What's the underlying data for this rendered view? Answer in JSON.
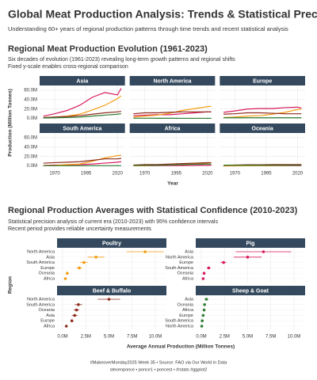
{
  "header": {
    "title": "Global Meat Production Analysis: Trends & Statistical Precision",
    "subtitle": "Understanding 60+ years of regional production patterns through time trends and recent statistical analysis"
  },
  "chart_data": [
    {
      "type": "line",
      "title": "Regional Meat Production Evolution (1961-2023)",
      "subtitle": [
        "Six decades of evolution (1961-2023) revealing long-term growth patterns and regional shifts",
        "Fixed y-scale enables cross-regional comparison"
      ],
      "y_label": "Production (Million Tonnes)",
      "x_label": "Year",
      "x": [
        1961,
        1970,
        1980,
        1990,
        2000,
        2010,
        2020,
        2023
      ],
      "xlim": [
        1958,
        2026
      ],
      "xticks": [
        1970,
        1995,
        2020
      ],
      "ylim": [
        -4,
        70
      ],
      "yticks": [
        {
          "value": 0,
          "label": "0.0M"
        },
        {
          "value": 20,
          "label": "20.0M"
        },
        {
          "value": 40,
          "label": "40.0M"
        },
        {
          "value": 60,
          "label": "60.0M"
        }
      ],
      "grid": true,
      "panels": [
        {
          "name": "Asia",
          "series": [
            {
              "color": "#d81b60",
              "values": [
                5,
                10,
                17,
                28,
                45,
                55,
                50,
                64
              ]
            },
            {
              "color": "#f39c12",
              "values": [
                2,
                3,
                5,
                9,
                18,
                28,
                42,
                48
              ]
            },
            {
              "color": "#8e2c1f",
              "values": [
                2,
                3,
                4,
                6,
                9,
                12,
                14,
                15
              ]
            },
            {
              "color": "#2e7d32",
              "values": [
                1,
                1.5,
                2,
                3,
                5,
                7,
                9,
                10
              ]
            }
          ]
        },
        {
          "name": "North America",
          "series": [
            {
              "color": "#d81b60",
              "values": [
                6,
                7,
                8,
                8,
                10,
                12,
                14,
                14
              ]
            },
            {
              "color": "#f39c12",
              "values": [
                3,
                5,
                7,
                11,
                17,
                21,
                25,
                26
              ]
            },
            {
              "color": "#8e2c1f",
              "values": [
                10,
                12,
                12,
                13,
                14,
                14,
                14,
                14
              ]
            },
            {
              "color": "#2e7d32",
              "values": [
                0.5,
                0.5,
                0.4,
                0.4,
                0.3,
                0.3,
                0.3,
                0.3
              ]
            }
          ]
        },
        {
          "name": "Europe",
          "series": [
            {
              "color": "#d81b60",
              "values": [
                13,
                16,
                20,
                21,
                21,
                23,
                24,
                22
              ]
            },
            {
              "color": "#f39c12",
              "values": [
                2,
                3,
                5,
                6,
                9,
                13,
                19,
                20
              ]
            },
            {
              "color": "#8e2c1f",
              "values": [
                9,
                10,
                12,
                12,
                11,
                10,
                10,
                10
              ]
            },
            {
              "color": "#2e7d32",
              "values": [
                1.5,
                1.5,
                1.5,
                1.5,
                1.5,
                1.5,
                1.5,
                1.5
              ]
            }
          ]
        },
        {
          "name": "South America",
          "series": [
            {
              "color": "#d81b60",
              "values": [
                1,
                2,
                2,
                3,
                4,
                6,
                8,
                9
              ]
            },
            {
              "color": "#f39c12",
              "values": [
                0.5,
                1,
                3,
                4,
                10,
                17,
                22,
                23
              ]
            },
            {
              "color": "#8e2c1f",
              "values": [
                6,
                7,
                8,
                9,
                12,
                15,
                15,
                16
              ]
            },
            {
              "color": "#2e7d32",
              "values": [
                0.5,
                0.5,
                0.5,
                0.5,
                0.5,
                0.5,
                0.5,
                0.5
              ]
            }
          ]
        },
        {
          "name": "Africa",
          "series": [
            {
              "color": "#d81b60",
              "values": [
                0.3,
                0.4,
                0.5,
                0.7,
                0.9,
                1.2,
                1.4,
                1.5
              ]
            },
            {
              "color": "#f39c12",
              "values": [
                0.5,
                0.8,
                1.5,
                2,
                3,
                5,
                6,
                7
              ]
            },
            {
              "color": "#8e2c1f",
              "values": [
                2,
                3,
                3,
                4,
                5,
                6,
                7,
                7
              ]
            },
            {
              "color": "#2e7d32",
              "values": [
                1,
                1.5,
                1.5,
                2,
                3,
                3.5,
                4,
                4
              ]
            }
          ]
        },
        {
          "name": "Oceania",
          "series": [
            {
              "color": "#d81b60",
              "values": [
                0.2,
                0.3,
                0.5,
                0.5,
                0.5,
                0.6,
                0.6,
                0.6
              ]
            },
            {
              "color": "#f39c12",
              "values": [
                0.1,
                0.2,
                0.4,
                0.6,
                0.9,
                1.1,
                1.4,
                1.5
              ]
            },
            {
              "color": "#8e2c1f",
              "values": [
                1.5,
                2,
                2.5,
                2.5,
                3,
                3,
                3,
                3
              ]
            },
            {
              "color": "#2e7d32",
              "values": [
                1.5,
                1.5,
                1.5,
                1.5,
                1.5,
                1.5,
                1.5,
                1.5
              ]
            }
          ]
        }
      ]
    },
    {
      "type": "dot",
      "title": "Regional Production Averages with Statistical Confidence (2010-2023)",
      "subtitle": [
        "Statistical precision analysis of current era (2010-2023) with 95% confidence intervals",
        "Recent period provides reliable uncertainty measurements"
      ],
      "y_label": "Region",
      "x_label": "Average Annual Production (Million Tonnes)",
      "xlim": [
        -0.6,
        11.2
      ],
      "xticks": [
        {
          "value": 0,
          "label": "0.0M"
        },
        {
          "value": 2.5,
          "label": "2.5M"
        },
        {
          "value": 5,
          "label": "5.0M"
        },
        {
          "value": 7.5,
          "label": "7.5M"
        },
        {
          "value": 10,
          "label": "10.0M"
        }
      ],
      "grid": true,
      "panels": [
        {
          "name": "Poultry",
          "color": "#f39c12",
          "categories": [
            "North America",
            "Asia",
            "South America",
            "Europe",
            "Oceania",
            "Africa"
          ],
          "values": [
            8.9,
            3.6,
            2.3,
            1.8,
            0.5,
            0.3
          ],
          "errors": [
            2,
            0.9,
            0.4,
            0.3,
            0.1,
            0.1
          ]
        },
        {
          "name": "Pig",
          "color": "#d81b60",
          "categories": [
            "Asia",
            "North America",
            "Europe",
            "South America",
            "Oceania",
            "Africa"
          ],
          "values": [
            6.7,
            5,
            2.4,
            0.8,
            0.3,
            0.2
          ],
          "errors": [
            3,
            1.5,
            0.3,
            0.2,
            0.1,
            0.05
          ]
        },
        {
          "name": "Beef & Buffalo",
          "color": "#8e2c1f",
          "categories": [
            "North America",
            "South America",
            "Oceania",
            "Asia",
            "Europe",
            "Africa"
          ],
          "values": [
            5,
            1.7,
            1.5,
            1.3,
            1,
            0.4
          ],
          "errors": [
            1.2,
            0.4,
            0.3,
            0.3,
            0.15,
            0.1
          ]
        },
        {
          "name": "Sheep & Goat",
          "color": "#2e7d32",
          "categories": [
            "Asia",
            "Oceania",
            "Africa",
            "Europe",
            "South America",
            "North America"
          ],
          "values": [
            0.55,
            0.35,
            0.3,
            0.2,
            0.1,
            0.05
          ],
          "errors": [
            0.2,
            0.05,
            0.05,
            0.03,
            0.02,
            0.01
          ]
        }
      ]
    }
  ],
  "footer": [
    "#MakeoverMonday2025 Week 35 • Source: FAO via Our World in Data",
    "stevenponce • ponce1 • poncest • #rstats #ggplot2"
  ]
}
